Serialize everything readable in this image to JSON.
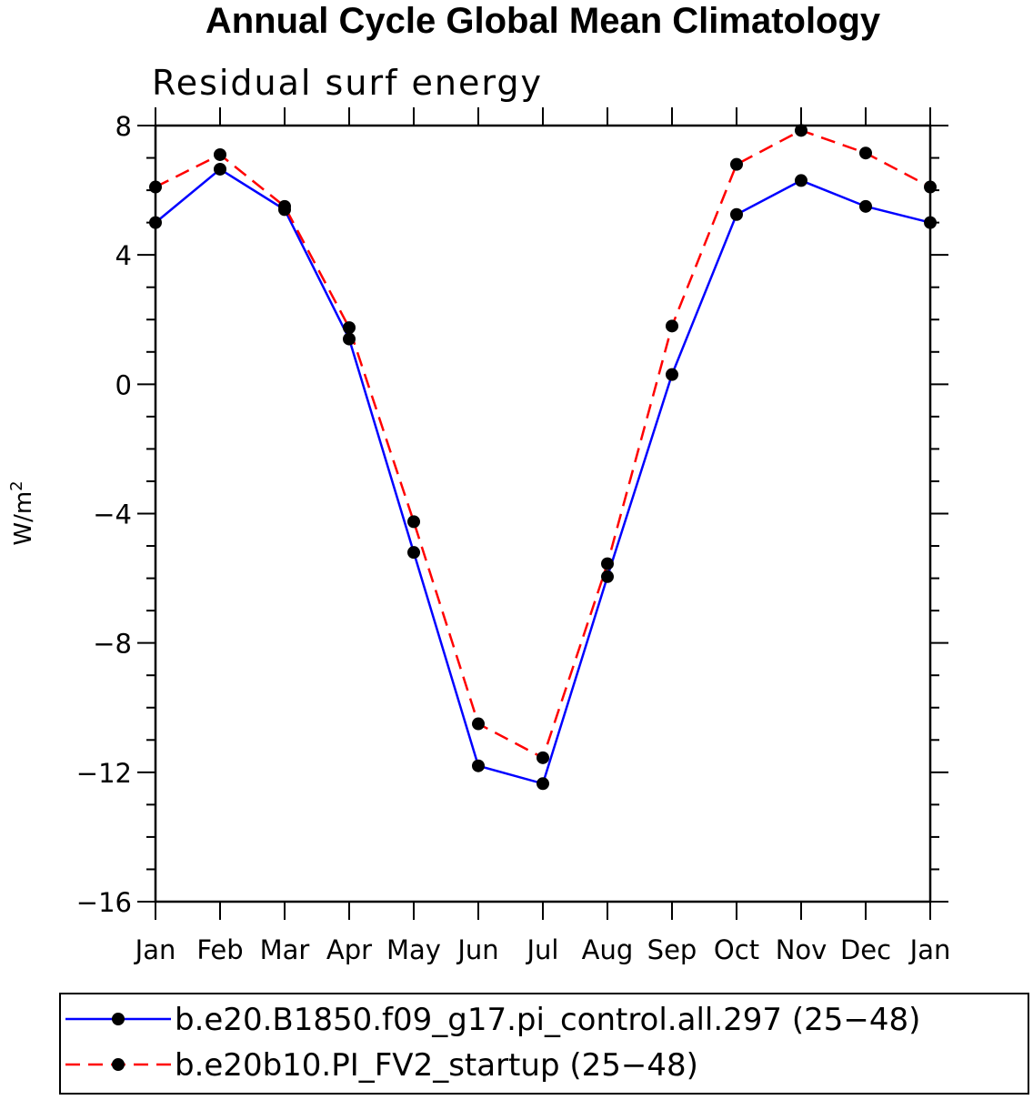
{
  "chart_data": {
    "type": "line",
    "title": "Annual Cycle Global Mean Climatology",
    "subtitle": "Residual surf energy",
    "xlabel": "",
    "ylabel": "W/m",
    "ylabel_superscript": "2",
    "categories": [
      "Jan",
      "Feb",
      "Mar",
      "Apr",
      "May",
      "Jun",
      "Jul",
      "Aug",
      "Sep",
      "Oct",
      "Nov",
      "Dec",
      "Jan"
    ],
    "ylim": [
      -16,
      8
    ],
    "yticks": [
      8,
      4,
      0,
      -4,
      -8,
      -12,
      -16
    ],
    "ytick_labels": [
      "8",
      "4",
      "0",
      "−4",
      "−8",
      "−12",
      "−16"
    ],
    "series": [
      {
        "name": "b.e20.B1850.f09_g17.pi_control.all.297 (25−48)",
        "color": "#0000ff",
        "dash": "solid",
        "values": [
          5.0,
          6.65,
          5.4,
          1.4,
          -5.2,
          -11.8,
          -12.35,
          -5.95,
          0.3,
          5.25,
          6.3,
          5.5,
          5.0
        ]
      },
      {
        "name": "b.e20b10.PI_FV2_startup (25−48)",
        "color": "#ff0000",
        "dash": "dashed",
        "values": [
          6.1,
          7.1,
          5.5,
          1.75,
          -4.25,
          -10.5,
          -11.55,
          -5.55,
          1.8,
          6.8,
          7.85,
          7.15,
          6.1
        ]
      }
    ],
    "legend_position": "bottom"
  }
}
